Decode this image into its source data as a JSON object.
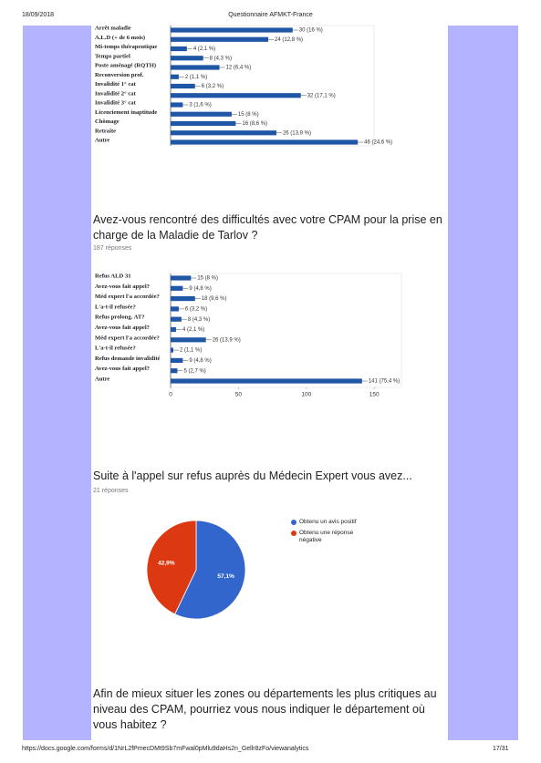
{
  "header": {
    "date": "18/09/2018",
    "title": "Questionnaire AFMKT-France"
  },
  "chart_data": [
    {
      "type": "bar",
      "orientation": "horizontal",
      "categories": [
        "Arrêt maladie",
        "A.L.D (+ de 6 mois)",
        "Mi-temps thérapeutique",
        "Temps partiel",
        "Poste aménagé (RQTH)",
        "Reconversion prof.",
        "Invalidité 1° cat",
        "Invalidité 2° cat",
        "Invalidité 3° cat",
        "Licenciement inaptitude",
        "Chômage",
        "Retraite",
        "Autre"
      ],
      "values": [
        30,
        24,
        4,
        8,
        12,
        2,
        6,
        32,
        3,
        15,
        16,
        26,
        46
      ],
      "value_labels": [
        "30 (16 %)",
        "24 (12,8 %)",
        "4 (2,1 %)",
        "8 (4,3 %)",
        "12 (6,4 %)",
        "2 (1,1 %)",
        "6 (3,2 %)",
        "32 (17,1 %)",
        "3 (1,6 %)",
        "15 (8 %)",
        "16 (8,6 %)",
        "26 (13,9 %)",
        "46 (24,6 %)"
      ],
      "color": "#1f56a5",
      "xlim": [
        0,
        50
      ]
    },
    {
      "type": "bar",
      "orientation": "horizontal",
      "title": "Avez-vous rencontré des difficultés avec votre CPAM pour la prise en charge de la Maladie de Tarlov ?",
      "subtitle": "187 réponses",
      "categories": [
        "Refus ALD 31",
        "Avez-vous fait appel?",
        "Méd expert l'a accordée?",
        "L'a-t-il refusée?",
        "Refus prolong. AT?",
        "Avez-vous fait appel?",
        "Méd expert l'a accordée?",
        "L'a-t-il refusée?",
        "Refus demande invalidité",
        "Avez-vous fait appel?",
        "Autre"
      ],
      "values": [
        15,
        9,
        18,
        6,
        8,
        4,
        26,
        2,
        9,
        5,
        141
      ],
      "value_labels": [
        "15 (8 %)",
        "9 (4,8 %)",
        "18 (9,6 %)",
        "6 (3,2 %)",
        "8 (4,3 %)",
        "4 (2,1 %)",
        "26 (13,9 %)",
        "2 (1,1 %)",
        "9 (4,8 %)",
        "5 (2,7 %)",
        "141 (75,4 %)"
      ],
      "color": "#1f56a5",
      "xlim": [
        0,
        170
      ],
      "xticks": [
        0,
        50,
        100,
        150
      ]
    },
    {
      "type": "pie",
      "title": "Suite à l'appel sur refus auprès du Médecin Expert vous avez...",
      "subtitle": "21 réponses",
      "categories": [
        "Obtenu un avis positif",
        "Obtenu une réponse négative"
      ],
      "values": [
        57.1,
        42.9
      ],
      "value_labels": [
        "57,1%",
        "42,9%"
      ],
      "colors": [
        "#3366cc",
        "#dc3912"
      ]
    }
  ],
  "final_question": "Afin de mieux situer les zones ou départements les plus critiques au niveau des CPAM, pourriez vous nous indiquer le département où vous habitez ?",
  "footer": {
    "url": "https://docs.google.com/forms/d/1NrL2fPmecDMt9Sb7mFwal0pMlu9daHs2n_Gellr8zFo/viewanalytics",
    "page": "17/31"
  }
}
